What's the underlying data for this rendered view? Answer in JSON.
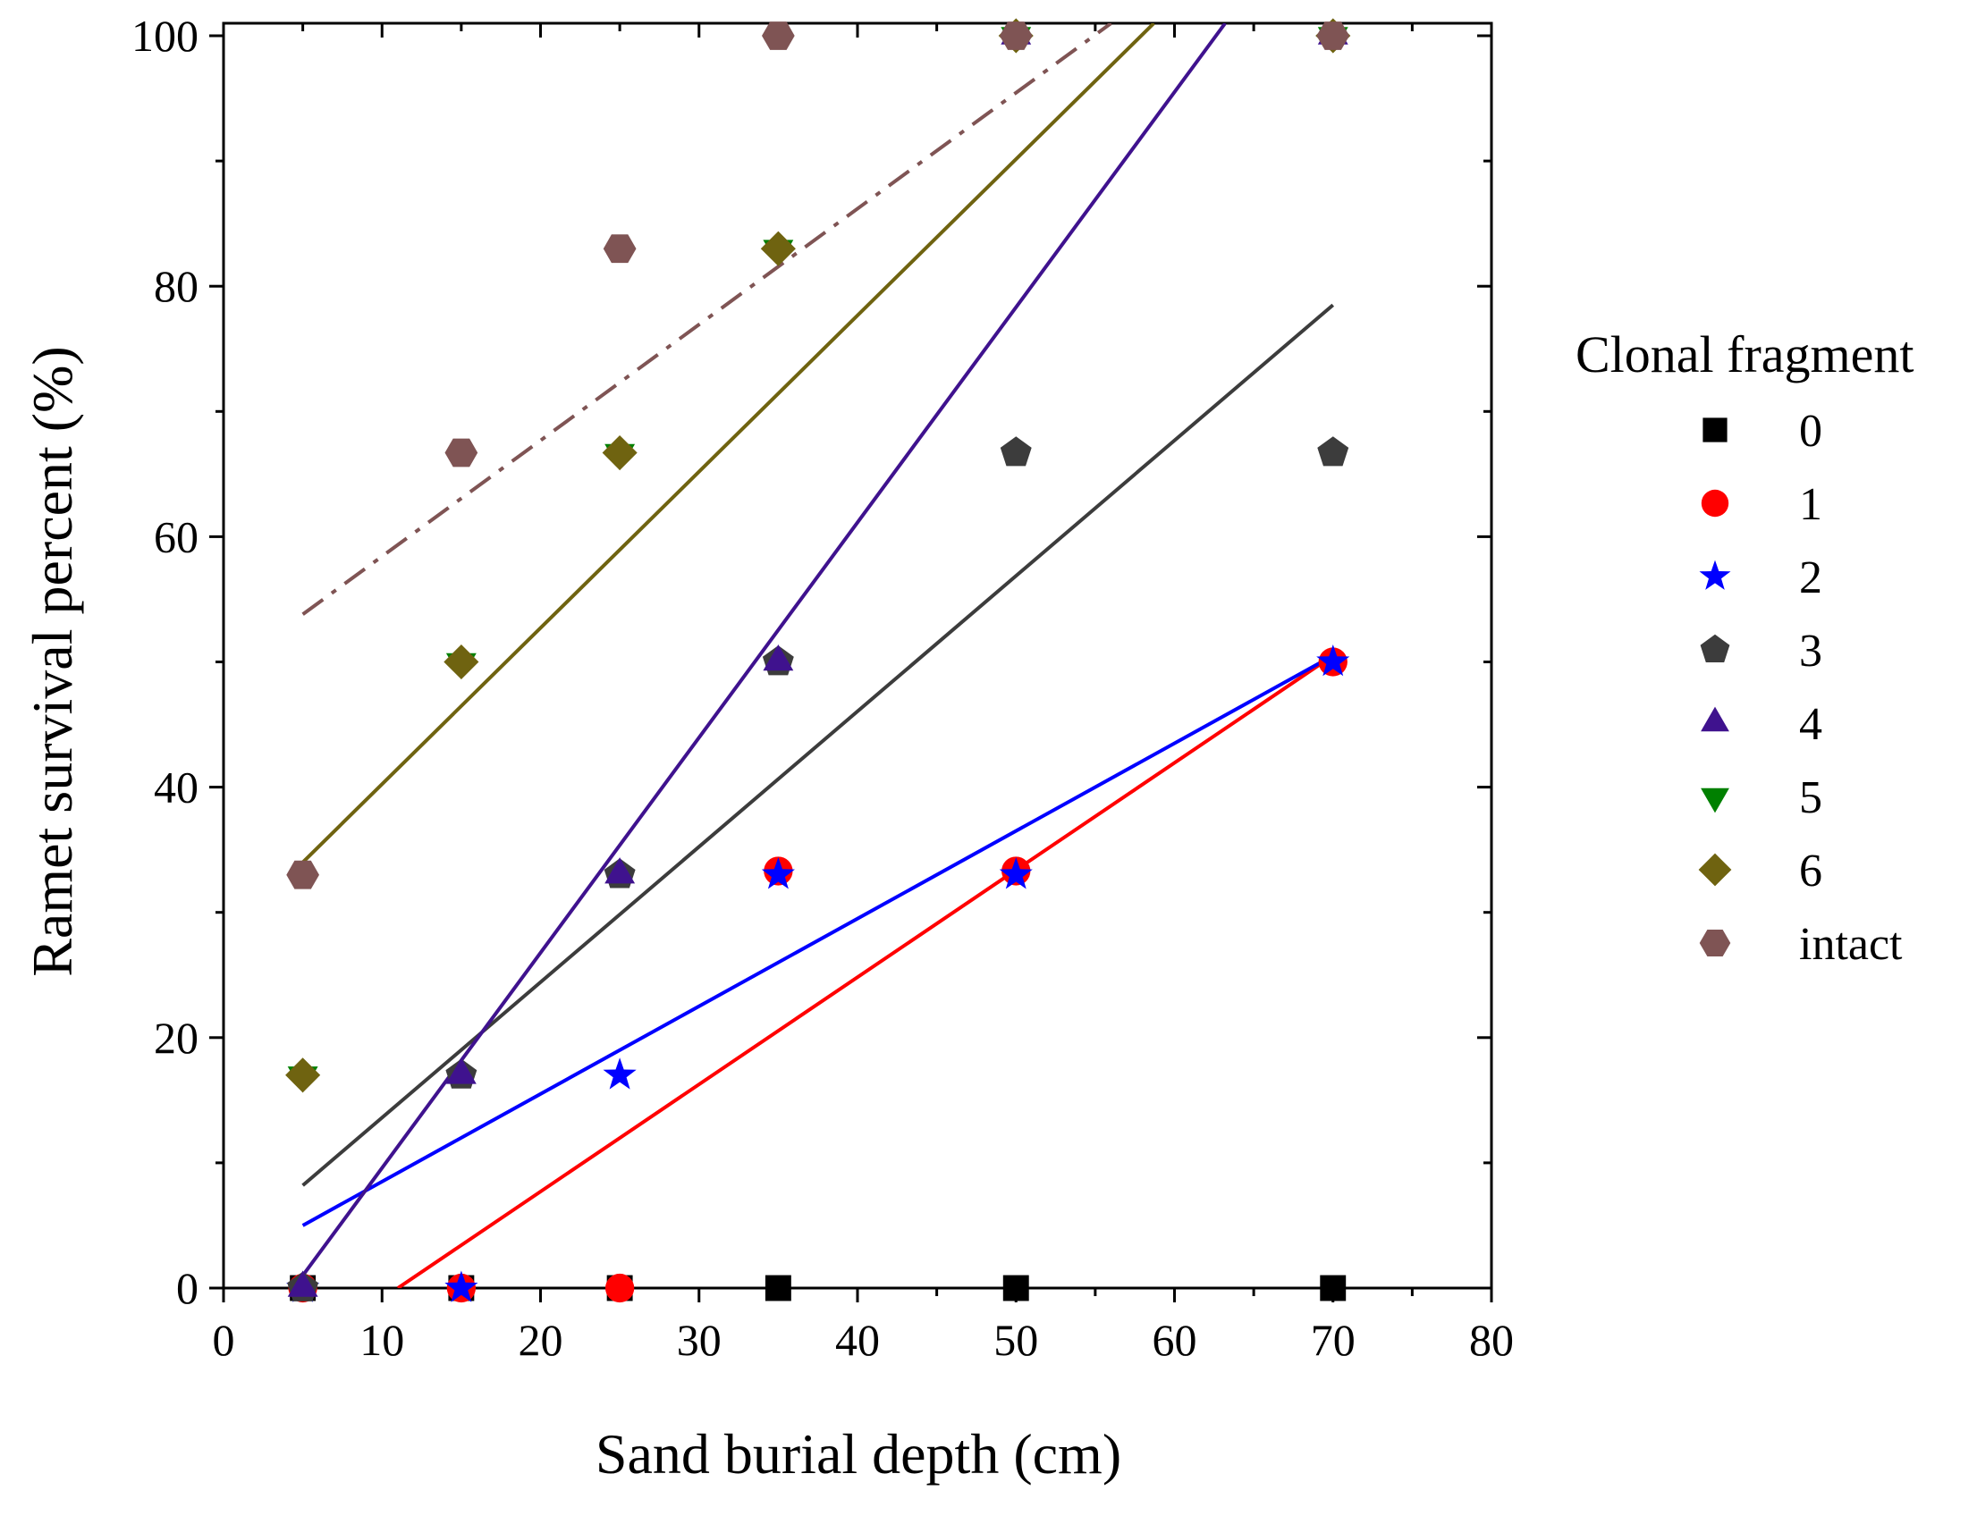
{
  "chart_data": {
    "type": "scatter",
    "xlabel": "Sand burial depth (cm)",
    "ylabel": "Ramet survival percent (%)",
    "xlim": [
      0,
      80
    ],
    "ylim": [
      0,
      100
    ],
    "x_ticks": [
      0,
      10,
      20,
      30,
      40,
      50,
      60,
      70,
      80
    ],
    "y_ticks": [
      0,
      20,
      40,
      60,
      80,
      100
    ],
    "x": [
      5,
      15,
      25,
      35,
      50,
      70
    ],
    "legend_title": "Clonal fragment",
    "legend_position": "right",
    "grid": false,
    "series": [
      {
        "name": "0",
        "marker": "square",
        "color": "#000000",
        "values": [
          0,
          0,
          0,
          0,
          0,
          0
        ],
        "fit": null
      },
      {
        "name": "1",
        "marker": "circle",
        "color": "#ff0000",
        "values": [
          0,
          0,
          0,
          33.3,
          33.3,
          50
        ],
        "fit": {
          "x": [
            11,
            70
          ],
          "y": [
            0,
            50.5
          ],
          "style": "solid"
        }
      },
      {
        "name": "2",
        "marker": "star",
        "color": "#0000ff",
        "values": [
          0,
          0,
          17,
          33,
          33,
          50
        ],
        "fit": {
          "x": [
            5,
            70
          ],
          "y": [
            5,
            50.5
          ],
          "style": "solid"
        }
      },
      {
        "name": "3",
        "marker": "pentagon",
        "color": "#3c3c3c",
        "values": [
          0,
          17,
          33,
          50,
          66.7,
          66.7
        ],
        "fit": {
          "x": [
            5,
            70
          ],
          "y": [
            8.2,
            78.5
          ],
          "style": "solid"
        }
      },
      {
        "name": "4",
        "marker": "triangle-up",
        "color": "#3f128e",
        "values": [
          0,
          17,
          33,
          50,
          100,
          100
        ],
        "fit": {
          "x": [
            5,
            63.2
          ],
          "y": [
            1,
            101
          ],
          "style": "solid"
        }
      },
      {
        "name": "5",
        "marker": "triangle-down",
        "color": "#008000",
        "values": [
          17,
          50,
          66.7,
          83,
          100,
          100
        ],
        "fit": null
      },
      {
        "name": "6",
        "marker": "diamond",
        "color": "#6f6310",
        "values": [
          17,
          50,
          66.7,
          83,
          100,
          100
        ],
        "fit": {
          "x": [
            5,
            58.7
          ],
          "y": [
            34,
            101
          ],
          "style": "solid"
        }
      },
      {
        "name": "intact",
        "marker": "hexagon",
        "color": "#7f5454",
        "values": [
          33,
          66.7,
          83,
          100,
          100,
          100
        ],
        "fit": {
          "x": [
            5,
            56
          ],
          "y": [
            53.8,
            101
          ],
          "style": "dash-dot"
        }
      }
    ]
  }
}
